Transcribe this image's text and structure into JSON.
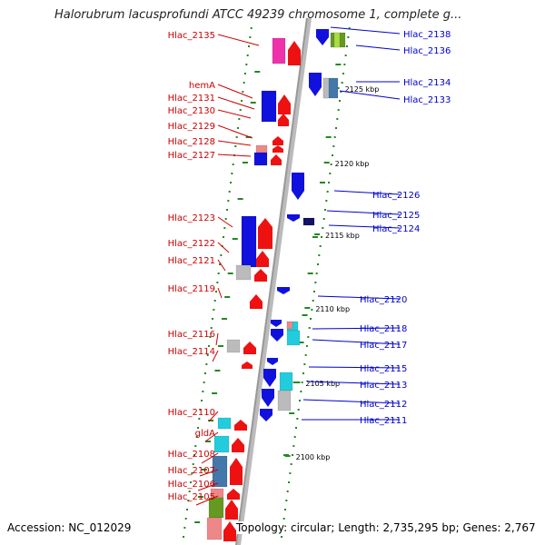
{
  "title": "Halorubrum lacusprofundi ATCC 49239 chromosome 1, complete g...",
  "accession": "Accession: NC_012029",
  "topology": "Topology: circular; Length: 2,735,295 bp; Genes: 2,767",
  "colors": {
    "left_label": "#cc0000",
    "right_label": "#0000cc",
    "backbone": "#999999",
    "ticks": "#228822"
  },
  "kbp_labels": [
    "2125 kbp",
    "2120 kbp",
    "2115 kbp",
    "2110 kbp",
    "2105 kbp",
    "2100 kbp"
  ],
  "left_genes": [
    "Hlac_2135",
    "hemA",
    "Hlac_2131",
    "Hlac_2130",
    "Hlac_2129",
    "Hlac_2128",
    "Hlac_2127",
    "Hlac_2123",
    "Hlac_2122",
    "Hlac_2121",
    "Hlac_2119",
    "Hlac_2116",
    "Hlac_2114",
    "Hlac_2110",
    "gldA",
    "Hlac_2108",
    "Hlac_2107",
    "Hlac_2106",
    "Hlac_2105"
  ],
  "right_genes": [
    "Hlac_2138",
    "Hlac_2136",
    "Hlac_2134",
    "Hlac_2133",
    "Hlac_2126",
    "Hlac_2125",
    "Hlac_2124",
    "Hlac_2120",
    "Hlac_2118",
    "Hlac_2117",
    "Hlac_2115",
    "Hlac_2113",
    "Hlac_2112",
    "Hlac_2111"
  ]
}
